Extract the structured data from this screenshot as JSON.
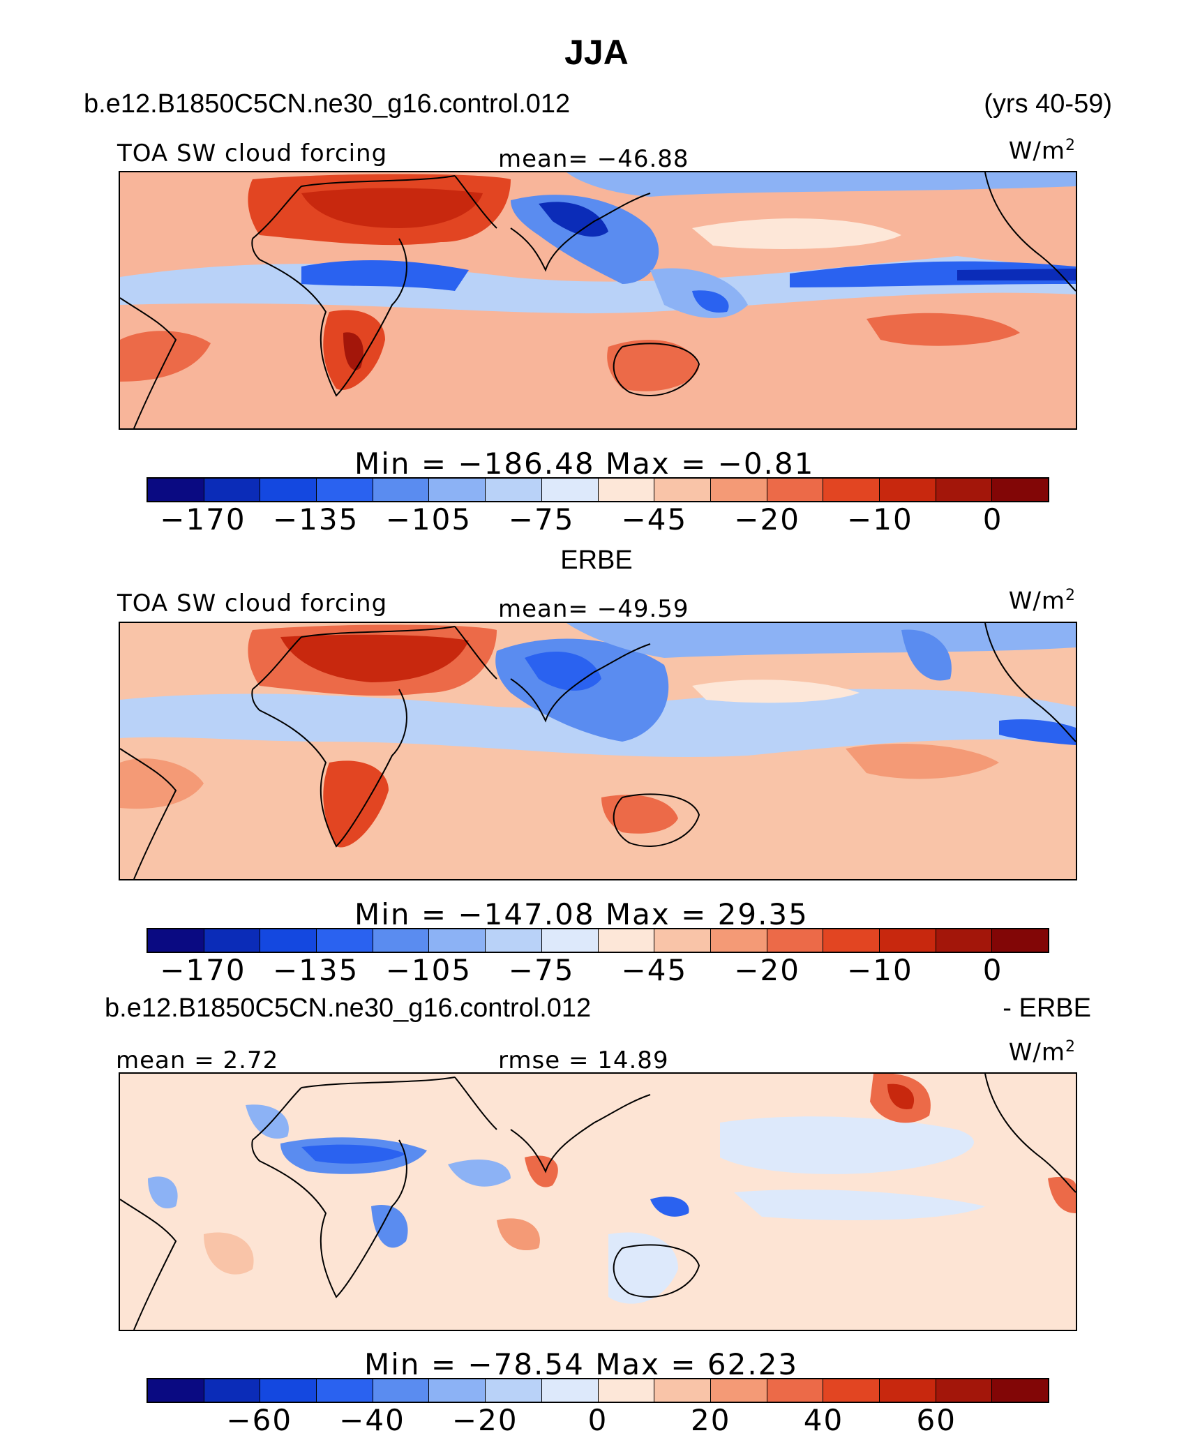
{
  "title": "JJA",
  "case_name": "b.e12.B1850C5CN.ne30_g16.control.012",
  "years": "(yrs 40-59)",
  "panels": [
    {
      "variable": "TOA SW cloud forcing",
      "stat": "mean= −46.88",
      "units": "W/m",
      "units_sup": "2",
      "minmax": "Min = −186.48  Max =   −0.81",
      "cbar_ticks": [
        "−170",
        "−135",
        "−105",
        "−75",
        "−45",
        "−20",
        "−10",
        "0"
      ]
    },
    {
      "heading": "ERBE",
      "variable": "TOA SW cloud forcing",
      "stat": "mean= −49.59",
      "units": "W/m",
      "units_sup": "2",
      "minmax": "Min = −147.08  Max =   29.35",
      "cbar_ticks": [
        "−170",
        "−135",
        "−105",
        "−75",
        "−45",
        "−20",
        "−10",
        "0"
      ]
    },
    {
      "heading_left": "b.e12.B1850C5CN.ne30_g16.control.012",
      "heading_right": "- ERBE",
      "stat_left": "mean =   2.72",
      "stat_mid": "rmse =  14.89",
      "units": "W/m",
      "units_sup": "2",
      "minmax": "Min = −78.54  Max =   62.23",
      "cbar_ticks": [
        "−60",
        "−40",
        "−20",
        "0",
        "20",
        "40",
        "60"
      ]
    }
  ],
  "colors": {
    "palette16": [
      "#0a0a82",
      "#0b2cb8",
      "#1448e0",
      "#2a62f0",
      "#5a8cf0",
      "#8cb2f5",
      "#b9d2f8",
      "#dde9fb",
      "#fde7d8",
      "#f9c4a8",
      "#f49a76",
      "#ec6a48",
      "#e24522",
      "#c8280e",
      "#a3160a",
      "#820606"
    ],
    "ocean_bg": "#f8b59a",
    "diff_bg": "#fde4d4"
  }
}
